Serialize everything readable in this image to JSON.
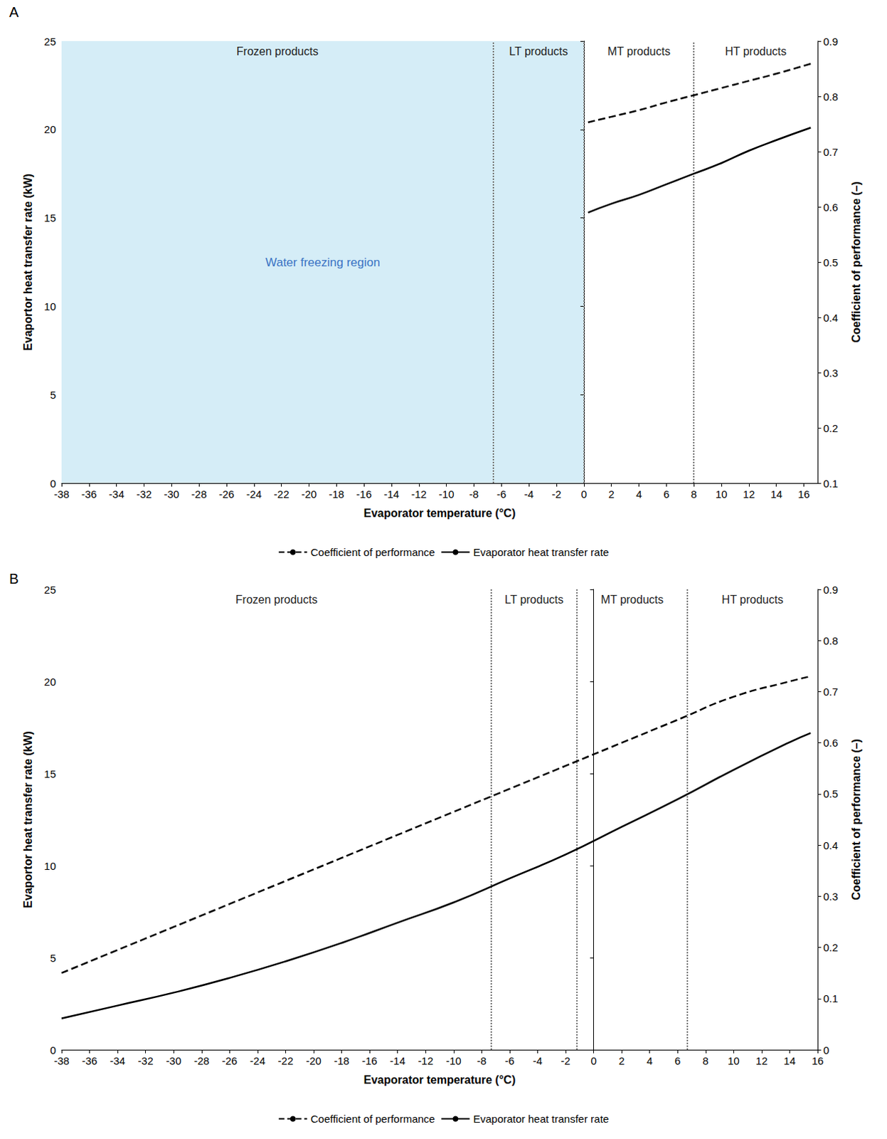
{
  "chart_data": [
    {
      "type": "line",
      "title": "A",
      "x_label": "Evaporator temperature (°C)",
      "y_label": "Evaportor heat transfer rate (kW)",
      "y2_label": "Coefficient of performance (–)",
      "x": [
        0.3,
        2,
        4,
        6,
        8,
        10,
        12,
        14,
        16.5
      ],
      "series": [
        {
          "name": "Coefficient of performance",
          "color": "#000000",
          "line_style": "dashed",
          "axis": "y2",
          "values": [
            0.753,
            0.763,
            0.775,
            0.789,
            0.802,
            0.815,
            0.828,
            0.841,
            0.859
          ]
        },
        {
          "name": "Evaporator heat transfer rate",
          "color": "#000000",
          "line_style": "solid",
          "axis": "y",
          "values": [
            15.3,
            15.8,
            16.3,
            16.9,
            17.5,
            18.1,
            18.8,
            19.4,
            20.1
          ]
        }
      ],
      "xlim": [
        -38,
        17
      ],
      "xticks": [
        -38,
        -36,
        -34,
        -32,
        -30,
        -28,
        -26,
        -24,
        -22,
        -20,
        -18,
        -16,
        -14,
        -12,
        -10,
        -8,
        -6,
        -4,
        -2,
        0,
        2,
        4,
        6,
        8,
        10,
        12,
        14,
        16
      ],
      "ylim": [
        0,
        25
      ],
      "yticks": [
        0,
        5,
        10,
        15,
        20,
        25
      ],
      "y2lim": [
        0.1,
        0.9
      ],
      "y2ticks": [
        0.1,
        0.2,
        0.3,
        0.4,
        0.5,
        0.6,
        0.7,
        0.8,
        0.9
      ],
      "regions": [
        {
          "label": "Frozen products",
          "from": -38,
          "to": -6.6
        },
        {
          "label": "LT products",
          "from": -6.6,
          "to": 0
        },
        {
          "label": "MT products",
          "from": 0,
          "to": 8
        },
        {
          "label": "HT products",
          "from": 8,
          "to": 17
        }
      ],
      "shaded": {
        "label": "Water freezing region",
        "from": -38,
        "to": 0,
        "color": "#d5edf7"
      },
      "grid": false,
      "legend": "bottom"
    },
    {
      "type": "line",
      "title": "B",
      "x_label": "Evaporator temperature (°C)",
      "y_label": "Evaportor heat transfer rate (kW)",
      "y2_label": "Coefficient of performance (–)",
      "x": [
        -38,
        -34,
        -30,
        -26,
        -22,
        -18,
        -14,
        -10,
        -6,
        -2,
        2,
        6,
        10,
        14,
        15.5
      ],
      "series": [
        {
          "name": "Coefficient of performance",
          "color": "#000000",
          "line_style": "dashed",
          "axis": "y2",
          "values": [
            0.15,
            0.195,
            0.24,
            0.285,
            0.33,
            0.375,
            0.42,
            0.465,
            0.51,
            0.555,
            0.6,
            0.645,
            0.69,
            0.72,
            0.73
          ]
        },
        {
          "name": "Evaporator heat transfer rate",
          "color": "#000000",
          "line_style": "solid",
          "axis": "y",
          "values": [
            1.7,
            2.4,
            3.1,
            3.9,
            4.8,
            5.8,
            6.9,
            8.0,
            9.3,
            10.6,
            12.1,
            13.6,
            15.2,
            16.7,
            17.2
          ]
        }
      ],
      "xlim": [
        -38,
        16
      ],
      "xticks": [
        -38,
        -36,
        -34,
        -32,
        -30,
        -28,
        -26,
        -24,
        -22,
        -20,
        -18,
        -16,
        -14,
        -12,
        -10,
        -8,
        -6,
        -4,
        -2,
        0,
        2,
        4,
        6,
        8,
        10,
        12,
        14,
        16
      ],
      "ylim": [
        0,
        25
      ],
      "yticks": [
        0,
        5,
        10,
        15,
        20,
        25
      ],
      "y2lim": [
        0,
        0.9
      ],
      "y2ticks": [
        0,
        0.1,
        0.2,
        0.3,
        0.4,
        0.5,
        0.6,
        0.7,
        0.8,
        0.9
      ],
      "regions": [
        {
          "label": "Frozen products",
          "from": -38,
          "to": -7.3
        },
        {
          "label": "LT products",
          "from": -7.3,
          "to": -1.2
        },
        {
          "label": "MT products",
          "from": -1.2,
          "to": 6.7
        },
        {
          "label": "HT products",
          "from": 6.7,
          "to": 16
        }
      ],
      "grid": false,
      "legend": "bottom"
    }
  ]
}
